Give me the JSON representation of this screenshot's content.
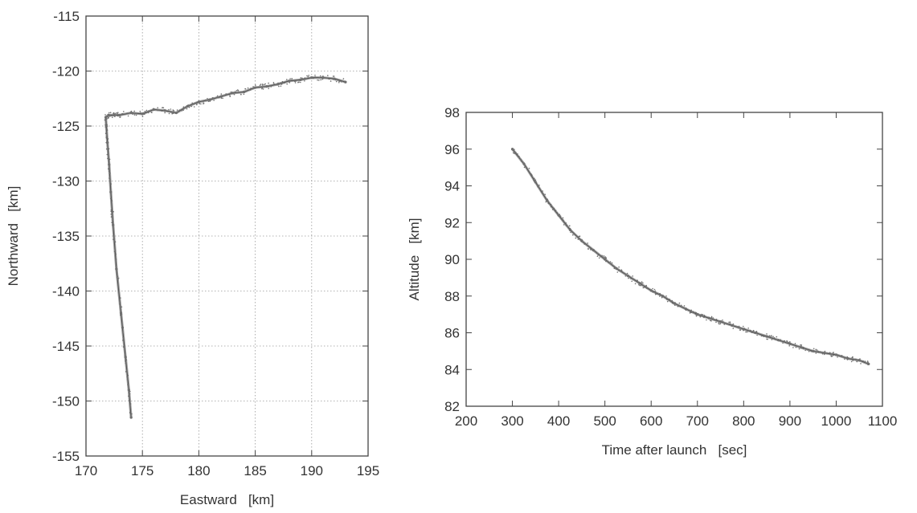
{
  "chart_data": [
    {
      "type": "scatter",
      "title": "",
      "xlabel": "Eastward   [km]",
      "ylabel": "Northward   [km]",
      "xlim": [
        170,
        195
      ],
      "ylim": [
        -155,
        -115
      ],
      "xticks": [
        170,
        175,
        180,
        185,
        190,
        195
      ],
      "yticks": [
        -155,
        -150,
        -145,
        -140,
        -135,
        -130,
        -125,
        -120,
        -115
      ],
      "grid": true,
      "series": [
        {
          "x": [
            174.0,
            173.8,
            173.5,
            173.1,
            172.7,
            172.4,
            172.2,
            172.05,
            171.9,
            171.8,
            171.75,
            172.0,
            172.5,
            173.0,
            174.0,
            175.0,
            176.0,
            177.0,
            178.0,
            179.0,
            180.0,
            181.0,
            182.0,
            183.0,
            184.0,
            185.0,
            186.0,
            187.0,
            188.0,
            189.0,
            190.0,
            191.0,
            192.0,
            193.0
          ],
          "y": [
            -151.5,
            -149.0,
            -146.0,
            -142.0,
            -138.0,
            -134.0,
            -131.0,
            -128.5,
            -126.5,
            -125.0,
            -124.2,
            -124.0,
            -124.0,
            -124.0,
            -123.8,
            -123.9,
            -123.5,
            -123.6,
            -123.8,
            -123.2,
            -122.8,
            -122.6,
            -122.3,
            -122.0,
            -121.9,
            -121.5,
            -121.4,
            -121.2,
            -120.9,
            -120.8,
            -120.6,
            -120.6,
            -120.7,
            -121.0
          ]
        }
      ]
    },
    {
      "type": "scatter",
      "title": "",
      "xlabel": "Time after launch   [sec]",
      "ylabel": "Altitude   [km]",
      "xlim": [
        200,
        1100
      ],
      "ylim": [
        82,
        98
      ],
      "xticks": [
        200,
        300,
        400,
        500,
        600,
        700,
        800,
        900,
        1000,
        1100
      ],
      "yticks": [
        82,
        84,
        86,
        88,
        90,
        92,
        94,
        96,
        98
      ],
      "grid": false,
      "series": [
        {
          "x": [
            300,
            325,
            350,
            375,
            400,
            425,
            450,
            475,
            500,
            525,
            550,
            575,
            600,
            625,
            650,
            675,
            700,
            725,
            750,
            775,
            800,
            825,
            850,
            875,
            900,
            925,
            950,
            975,
            1000,
            1025,
            1050,
            1070
          ],
          "y": [
            96.0,
            95.2,
            94.2,
            93.2,
            92.4,
            91.6,
            91.0,
            90.5,
            90.0,
            89.5,
            89.1,
            88.7,
            88.3,
            88.0,
            87.6,
            87.3,
            87.0,
            86.8,
            86.6,
            86.4,
            86.2,
            86.0,
            85.8,
            85.6,
            85.4,
            85.2,
            85.0,
            84.9,
            84.8,
            84.6,
            84.5,
            84.3
          ]
        }
      ]
    }
  ]
}
